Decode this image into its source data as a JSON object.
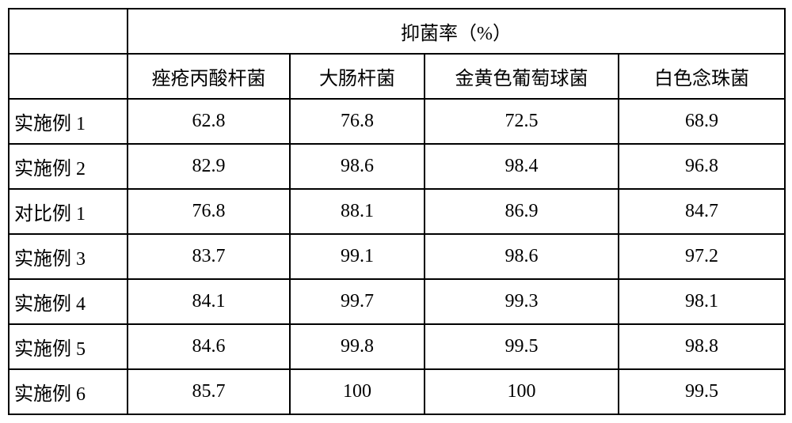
{
  "table": {
    "merged_header": "抑菌率（%）",
    "columns": [
      "痤疮丙酸杆菌",
      "大肠杆菌",
      "金黄色葡萄球菌",
      "白色念珠菌"
    ],
    "rows": [
      {
        "label": "实施例 1",
        "values": [
          "62.8",
          "76.8",
          "72.5",
          "68.9"
        ]
      },
      {
        "label": "实施例 2",
        "values": [
          "82.9",
          "98.6",
          "98.4",
          "96.8"
        ]
      },
      {
        "label": "对比例 1",
        "values": [
          "76.8",
          "88.1",
          "86.9",
          "84.7"
        ]
      },
      {
        "label": "实施例 3",
        "values": [
          "83.7",
          "99.1",
          "98.6",
          "97.2"
        ]
      },
      {
        "label": "实施例 4",
        "values": [
          "84.1",
          "99.7",
          "99.3",
          "98.1"
        ]
      },
      {
        "label": "实施例 5",
        "values": [
          "84.6",
          "99.8",
          "99.5",
          "98.8"
        ]
      },
      {
        "label": "实施例 6",
        "values": [
          "85.7",
          "100",
          "100",
          "99.5"
        ]
      }
    ],
    "col_widths": [
      "150px",
      "205px",
      "170px",
      "245px",
      "210px"
    ],
    "border_color": "#000000",
    "background_color": "#ffffff",
    "font_size": 24,
    "font_family": "SimSun"
  }
}
